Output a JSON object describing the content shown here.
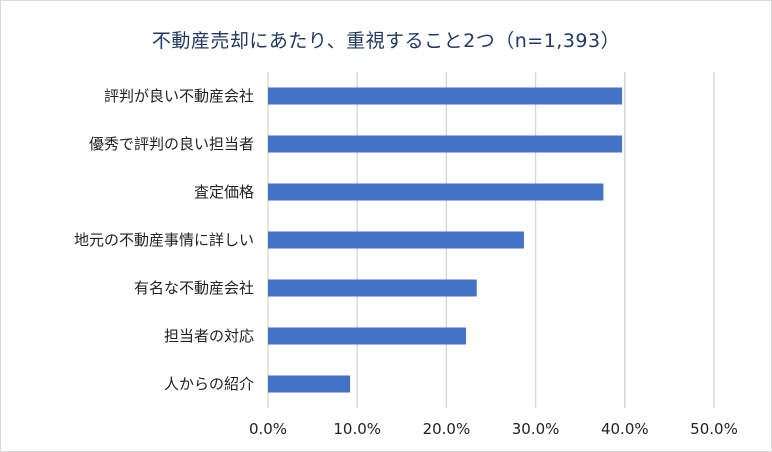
{
  "chart_data": {
    "type": "bar",
    "orientation": "horizontal",
    "title": "不動産売却にあたり、重視すること2つ（n=1,393）",
    "categories": [
      "評判が良い不動産会社",
      "優秀で評判の良い担当者",
      "査定価格",
      "地元の不動産事情に詳しい",
      "有名な不動産会社",
      "担当者の対応",
      "人からの紹介"
    ],
    "values": [
      39.7,
      39.7,
      37.6,
      28.7,
      23.4,
      22.2,
      9.2
    ],
    "x_ticks": [
      "0.0%",
      "10.0%",
      "20.0%",
      "30.0%",
      "40.0%",
      "50.0%"
    ],
    "xlim": [
      0,
      50
    ],
    "grid": true,
    "legend": "none",
    "bar_color": "#4472c4",
    "grid_color": "#d9d9d9"
  }
}
